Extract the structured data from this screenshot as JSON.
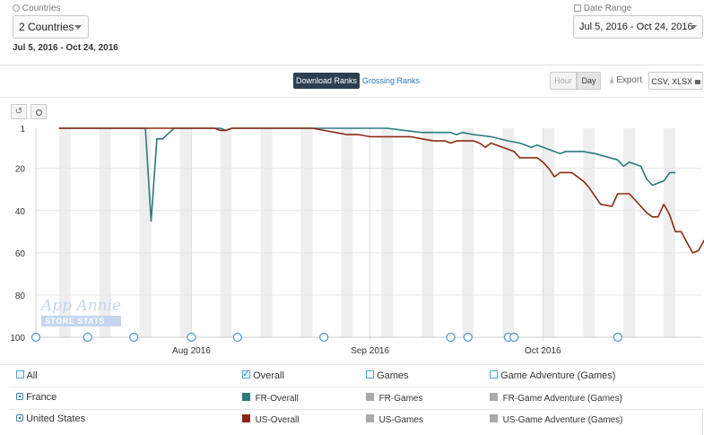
{
  "header": {
    "countries_label": "Countries",
    "countries_value": "2 Countries",
    "date_range_label": "Date Range",
    "date_range_value": "Jul 5, 2016 - Oct 24, 2016",
    "date_subtitle": "Jul 5, 2016 - Oct 24, 2016"
  },
  "toolbar": {
    "tab_download": "Download Ranks",
    "tab_grossing": "Grossing Ranks",
    "hour_label": "Hour",
    "day_label": "Day",
    "export_label": "Export",
    "csv_label": "CSV, XLSX"
  },
  "watermark": {
    "line1": "App Annie",
    "line2": "STORE STATS"
  },
  "legend": {
    "all": "All",
    "overall": "Overall",
    "games": "Games",
    "game_adventure": "Game Adventure (Games)",
    "rows": [
      {
        "country": "France",
        "overall": "FR-Overall",
        "games": "FR-Games",
        "adventure": "FR-Game Adventure (Games)"
      },
      {
        "country": "United States",
        "overall": "US-Overall",
        "games": "US-Games",
        "adventure": "US-Game Adventure (Games)"
      }
    ]
  },
  "colors": {
    "france": "#2b7a7b",
    "us": "#8b2a14",
    "inactive": "#aaaaaa",
    "accent": "#2c3e50"
  },
  "icons": {
    "reset": "undo-icon",
    "zoom": "zoom-icon",
    "export": "download-icon",
    "lock": "lock-icon",
    "globe": "globe-icon",
    "calendar": "calendar-icon"
  },
  "chart_data": {
    "type": "line",
    "x_start": "2016-07-05",
    "x_end": "2016-10-24",
    "x_ticks": [
      "Aug 2016",
      "Sep 2016",
      "Oct 2016"
    ],
    "x_tick_dates": [
      "2016-08-01",
      "2016-09-01",
      "2016-10-01"
    ],
    "y_ticks": [
      1,
      20,
      40,
      60,
      80,
      100
    ],
    "ylim": [
      1,
      100
    ],
    "y_inverted": true,
    "grid": "weekend bands",
    "annotation_dates": [
      "2016-07-05",
      "2016-07-14",
      "2016-07-22",
      "2016-08-01",
      "2016-08-09",
      "2016-08-24",
      "2016-09-15",
      "2016-09-18",
      "2016-09-25",
      "2016-09-26",
      "2016-10-14"
    ],
    "series": [
      {
        "name": "FR-Overall",
        "points": [
          [
            "2016-07-09",
            1
          ],
          [
            "2016-07-24",
            1
          ],
          [
            "2016-07-25",
            45
          ],
          [
            "2016-07-26",
            6
          ],
          [
            "2016-07-27",
            6
          ],
          [
            "2016-07-29",
            1
          ],
          [
            "2016-08-01",
            1
          ],
          [
            "2016-08-06",
            1
          ],
          [
            "2016-08-07",
            2
          ],
          [
            "2016-08-08",
            1
          ],
          [
            "2016-09-04",
            1
          ],
          [
            "2016-09-07",
            2
          ],
          [
            "2016-09-10",
            3
          ],
          [
            "2016-09-13",
            3
          ],
          [
            "2016-09-15",
            3
          ],
          [
            "2016-09-16",
            4
          ],
          [
            "2016-09-17",
            3
          ],
          [
            "2016-09-19",
            4
          ],
          [
            "2016-09-22",
            5
          ],
          [
            "2016-09-25",
            7
          ],
          [
            "2016-09-27",
            8
          ],
          [
            "2016-09-29",
            10
          ],
          [
            "2016-09-30",
            9
          ],
          [
            "2016-10-02",
            11
          ],
          [
            "2016-10-04",
            13
          ],
          [
            "2016-10-05",
            12
          ],
          [
            "2016-10-08",
            12
          ],
          [
            "2016-10-10",
            13
          ],
          [
            "2016-10-14",
            16
          ],
          [
            "2016-10-15",
            19
          ],
          [
            "2016-10-16",
            17
          ],
          [
            "2016-10-18",
            19
          ],
          [
            "2016-10-19",
            25
          ],
          [
            "2016-10-20",
            28
          ],
          [
            "2016-10-22",
            26
          ],
          [
            "2016-10-23",
            22
          ],
          [
            "2016-10-24",
            22
          ]
        ]
      },
      {
        "name": "US-Overall",
        "points": [
          [
            "2016-07-09",
            1
          ],
          [
            "2016-08-05",
            1
          ],
          [
            "2016-08-06",
            2
          ],
          [
            "2016-08-07",
            2
          ],
          [
            "2016-08-08",
            1
          ],
          [
            "2016-08-22",
            1
          ],
          [
            "2016-08-24",
            2
          ],
          [
            "2016-08-26",
            3
          ],
          [
            "2016-08-28",
            4
          ],
          [
            "2016-08-30",
            4
          ],
          [
            "2016-09-01",
            5
          ],
          [
            "2016-09-08",
            5
          ],
          [
            "2016-09-10",
            6
          ],
          [
            "2016-09-12",
            7
          ],
          [
            "2016-09-14",
            7
          ],
          [
            "2016-09-15",
            8
          ],
          [
            "2016-09-16",
            7
          ],
          [
            "2016-09-19",
            7
          ],
          [
            "2016-09-20",
            8
          ],
          [
            "2016-09-21",
            10
          ],
          [
            "2016-09-22",
            8
          ],
          [
            "2016-09-24",
            10
          ],
          [
            "2016-09-26",
            12
          ],
          [
            "2016-09-27",
            15
          ],
          [
            "2016-09-30",
            15
          ],
          [
            "2016-10-01",
            17
          ],
          [
            "2016-10-02",
            20
          ],
          [
            "2016-10-03",
            24
          ],
          [
            "2016-10-04",
            22
          ],
          [
            "2016-10-06",
            22
          ],
          [
            "2016-10-08",
            26
          ],
          [
            "2016-10-09",
            29
          ],
          [
            "2016-10-10",
            33
          ],
          [
            "2016-10-11",
            37
          ],
          [
            "2016-10-13",
            38
          ],
          [
            "2016-10-14",
            32
          ],
          [
            "2016-10-16",
            32
          ],
          [
            "2016-10-17",
            35
          ],
          [
            "2016-10-19",
            41
          ],
          [
            "2016-10-20",
            43
          ],
          [
            "2016-10-21",
            43
          ],
          [
            "2016-10-22",
            37
          ],
          [
            "2016-10-23",
            42
          ],
          [
            "2016-10-24",
            50
          ],
          [
            "2016-10-25",
            50
          ],
          [
            "2016-10-26",
            55
          ],
          [
            "2016-10-27",
            60
          ],
          [
            "2016-10-28",
            59
          ],
          [
            "2016-10-29",
            54
          ]
        ]
      }
    ]
  }
}
